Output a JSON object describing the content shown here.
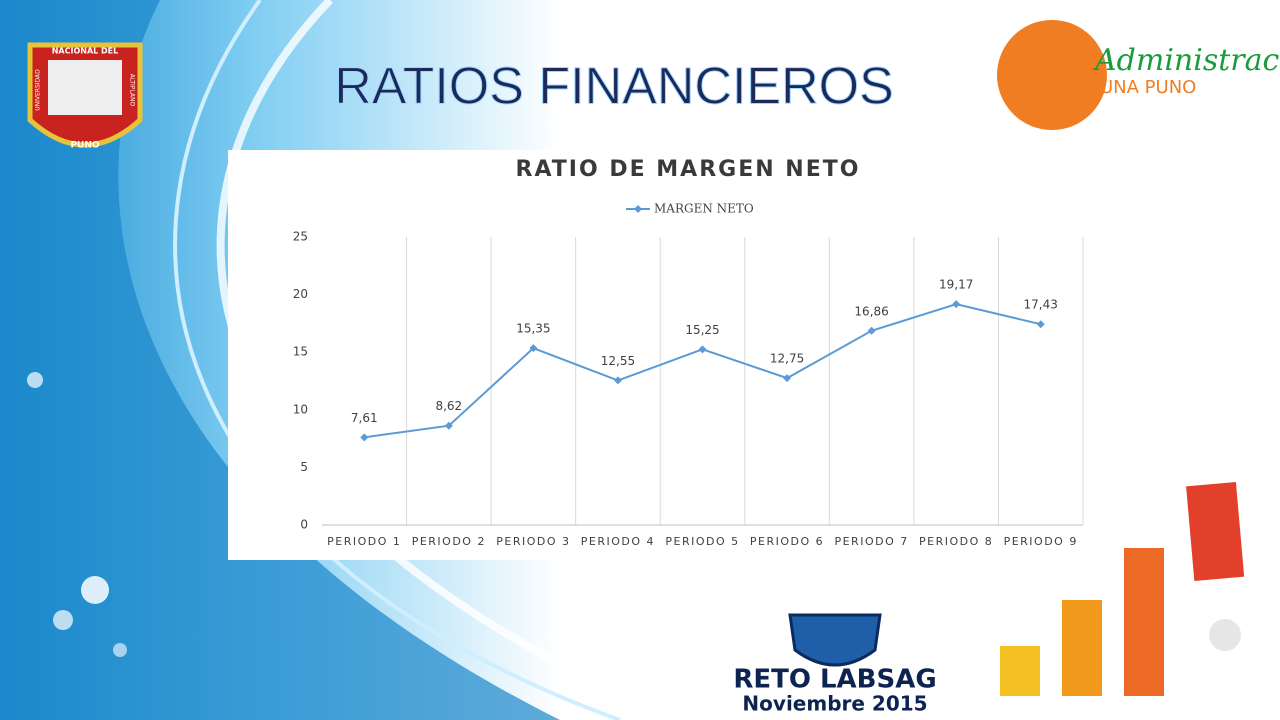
{
  "slide": {
    "title": "RATIOS FINANCIEROS",
    "logo_left": {
      "top": "NACIONAL DEL",
      "left": "UNIVERSIDAD",
      "right": "ALTIPLANO",
      "bottom": "PUNO"
    },
    "logo_right": {
      "name": "Administración",
      "sub": "UNA PUNO"
    },
    "badge": {
      "name": "RETO LABSAG",
      "date": "Noviembre 2015"
    }
  },
  "chart_data": {
    "type": "line",
    "title": "RATIO DE MARGEN NETO",
    "categories": [
      "PERIODO 1",
      "PERIODO 2",
      "PERIODO 3",
      "PERIODO 4",
      "PERIODO 5",
      "PERIODO 6",
      "PERIODO 7",
      "PERIODO 8",
      "PERIODO 9"
    ],
    "series": [
      {
        "name": "MARGEN NETO",
        "color": "#5b9bd5",
        "values": [
          7.61,
          8.62,
          15.35,
          12.55,
          15.25,
          12.75,
          16.86,
          19.17,
          17.43
        ],
        "value_labels": [
          "7,61",
          "8,62",
          "15,35",
          "12,55",
          "15,25",
          "12,75",
          "16,86",
          "19,17",
          "17,43"
        ]
      }
    ],
    "ylim": [
      0,
      25
    ],
    "yticks": [
      0,
      5,
      10,
      15,
      20,
      25
    ],
    "legend": "top"
  }
}
